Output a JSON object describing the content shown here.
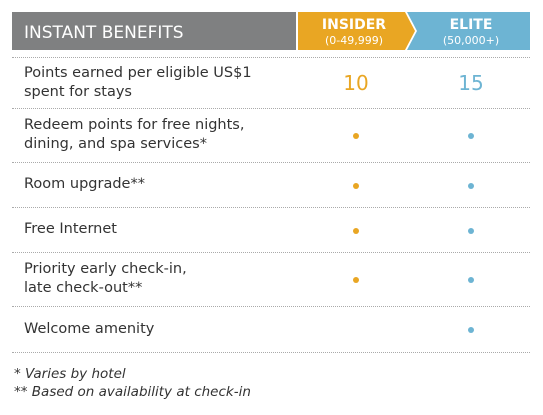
{
  "header": {
    "title": "INSTANT BENEFITS",
    "tiers": [
      {
        "name": "INSIDER",
        "range": "(0-49,999)",
        "color": "#e9a623"
      },
      {
        "name": "ELITE",
        "range": "(50,000+)",
        "color": "#6db4d3"
      }
    ]
  },
  "rows": [
    {
      "lines": [
        "Points earned per eligible US$1",
        "spent for stays"
      ],
      "insider": 10,
      "elite": 15
    },
    {
      "lines": [
        "Redeem points for free nights,",
        "dining, and spa services*"
      ],
      "insider": true,
      "elite": true
    },
    {
      "lines": [
        "Room upgrade**"
      ],
      "insider": true,
      "elite": true
    },
    {
      "lines": [
        "Free Internet"
      ],
      "insider": true,
      "elite": true
    },
    {
      "lines": [
        "Priority early check-in,",
        "late check-out**"
      ],
      "insider": true,
      "elite": true
    },
    {
      "lines": [
        "Welcome amenity"
      ],
      "insider": false,
      "elite": true
    }
  ],
  "footnotes": [
    "* Varies by hotel",
    "** Based on availability at check-in"
  ]
}
